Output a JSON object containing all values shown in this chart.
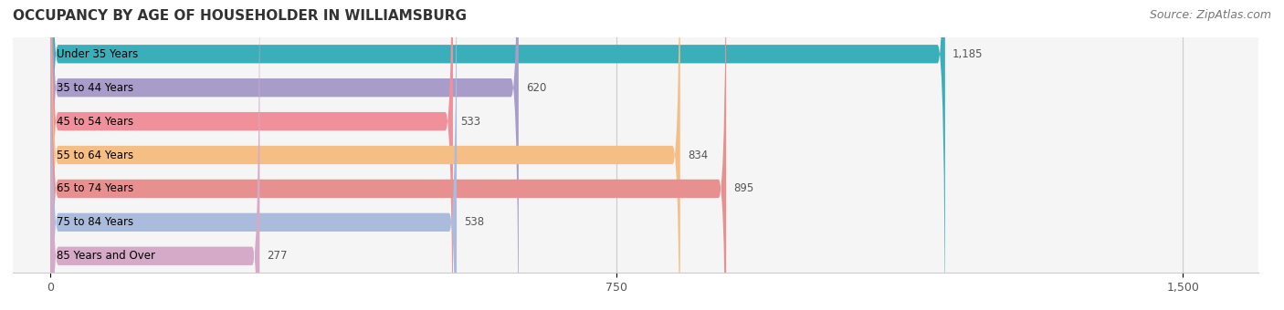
{
  "title": "OCCUPANCY BY AGE OF HOUSEHOLDER IN WILLIAMSBURG",
  "source": "Source: ZipAtlas.com",
  "categories": [
    "Under 35 Years",
    "35 to 44 Years",
    "45 to 54 Years",
    "55 to 64 Years",
    "65 to 74 Years",
    "75 to 84 Years",
    "85 Years and Over"
  ],
  "values": [
    1185,
    620,
    533,
    834,
    895,
    538,
    277
  ],
  "bar_colors": [
    "#3aafb9",
    "#a89cc8",
    "#f0909a",
    "#f5be85",
    "#e89090",
    "#aabbdd",
    "#d4aac8"
  ],
  "bar_bg_color": "#eeeeee",
  "xlim": [
    0,
    1500
  ],
  "xticks": [
    0,
    750,
    1500
  ],
  "value_label_color": "#555555",
  "title_fontsize": 11,
  "source_fontsize": 9,
  "label_fontsize": 8.5,
  "tick_fontsize": 9,
  "bar_height": 0.55,
  "bar_row_bg": "#f5f5f5",
  "label_in_bar_color": "#ffffff",
  "label_out_bar_color": "#555555"
}
